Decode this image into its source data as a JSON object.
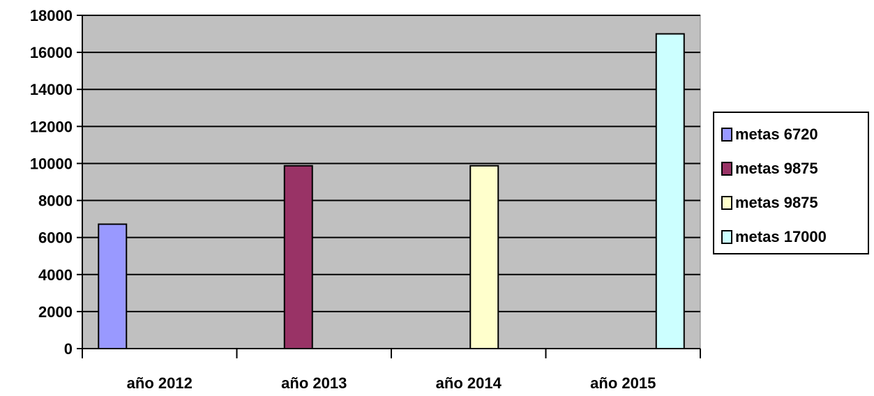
{
  "chart_data": {
    "type": "bar",
    "categories": [
      "año 2012",
      "año 2013",
      "año 2014",
      "año 2015"
    ],
    "series": [
      {
        "name": "metas 6720",
        "color": "#9999ff",
        "values": [
          6720,
          null,
          null,
          null
        ]
      },
      {
        "name": "metas 9875",
        "color": "#993366",
        "values": [
          null,
          9875,
          null,
          null
        ]
      },
      {
        "name": "metas 9875",
        "color": "#ffffcc",
        "values": [
          null,
          null,
          9875,
          null
        ]
      },
      {
        "name": "metas 17000",
        "color": "#ccffff",
        "values": [
          null,
          null,
          null,
          17000
        ]
      }
    ],
    "yticks": [
      "0",
      "2000",
      "4000",
      "6000",
      "8000",
      "10000",
      "12000",
      "14000",
      "16000",
      "18000"
    ],
    "ylim": [
      0,
      18000
    ],
    "grid": true,
    "plot_background": "#c0c0c0",
    "legend_position": "right"
  }
}
